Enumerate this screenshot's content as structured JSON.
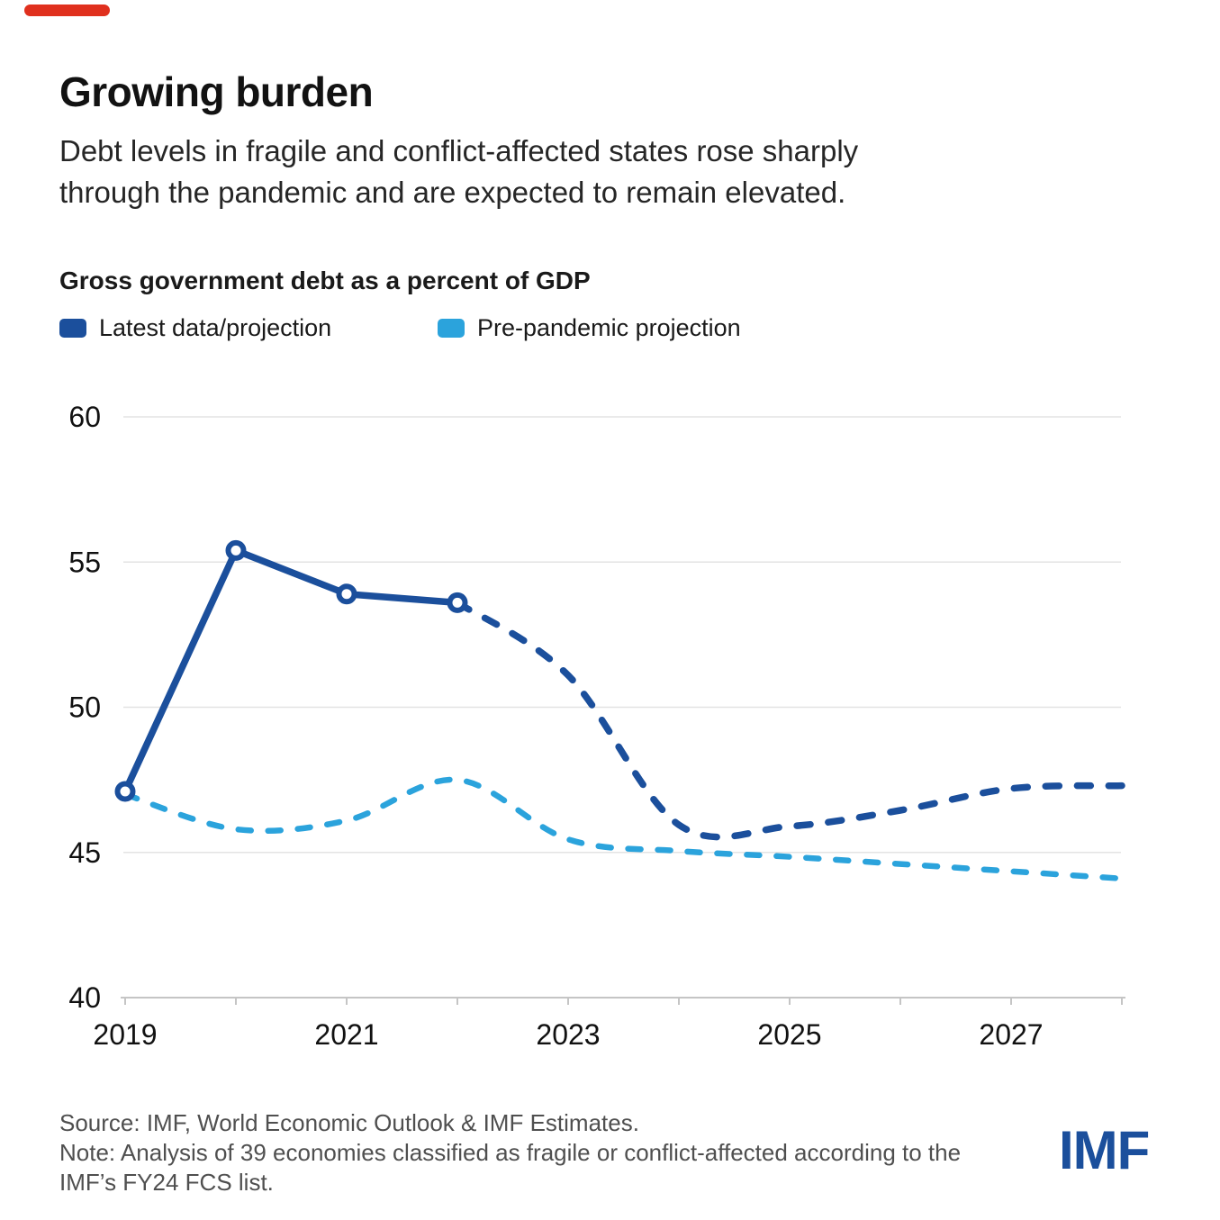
{
  "page": {
    "accent_bar_color": "#E0301E",
    "background": "#FFFFFF"
  },
  "header": {
    "title": "Growing burden",
    "subtitle": "Debt levels in fragile and conflict-affected states rose sharply\nthrough the pandemic and are expected to remain elevated."
  },
  "chart": {
    "title": "Gross government debt as a percent of GDP",
    "legend": [
      {
        "label": "Latest data/projection",
        "color": "#1B4F9C"
      },
      {
        "label": "Pre-pandemic projection",
        "color": "#2BA3DC"
      }
    ]
  },
  "chart_data": {
    "type": "line",
    "title": "Gross government debt as a percent of GDP",
    "x": [
      2019,
      2020,
      2021,
      2022,
      2023,
      2024,
      2025,
      2026,
      2027,
      2028
    ],
    "series": [
      {
        "name": "Latest data/projection",
        "color": "#1B4F9C",
        "line_style": "solid with circle markers through 2022, dashed projection 2022-2028",
        "solid_until_x": 2022,
        "markers_at_x": [
          2019,
          2020,
          2021,
          2022
        ],
        "values": [
          47.1,
          55.4,
          53.9,
          53.6,
          51.1,
          45.95,
          45.9,
          46.45,
          47.2,
          47.3
        ]
      },
      {
        "name": "Pre-pandemic projection",
        "color": "#2BA3DC",
        "line_style": "dashed",
        "values": [
          47.0,
          45.8,
          46.1,
          47.5,
          45.45,
          45.05,
          44.85,
          44.6,
          44.35,
          44.1
        ]
      }
    ],
    "xlabel": "",
    "ylabel": "",
    "ylim": [
      40,
      60
    ],
    "yticks": [
      40,
      45,
      50,
      55,
      60
    ],
    "xtick_labels": [
      2019,
      2021,
      2023,
      2025,
      2027
    ],
    "grid": true,
    "grid_color": "#E3E3E3",
    "axis_color": "#C5C5C5",
    "legend_position": "top-left"
  },
  "footer": {
    "source": "Source: IMF, World Economic Outlook & IMF Estimates.",
    "note": "Note: Analysis of 39 economies classified as fragile or conflict-affected according to the\nIMF’s FY24 FCS list.",
    "logo": "IMF",
    "logo_color": "#1B4F9C"
  }
}
